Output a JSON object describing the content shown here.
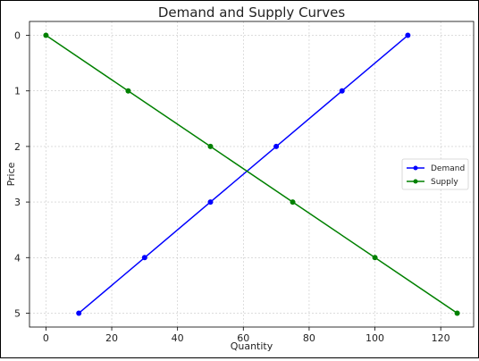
{
  "chart_data": {
    "type": "line",
    "title": "Demand and Supply Curves",
    "xlabel": "Quantity",
    "ylabel": "Price",
    "xlim": [
      -5,
      130
    ],
    "ylim": [
      5.25,
      -0.25
    ],
    "y_axis_inverted": true,
    "xticks": [
      0,
      20,
      40,
      60,
      80,
      100,
      120
    ],
    "yticks": [
      0,
      1,
      2,
      3,
      4,
      5
    ],
    "grid": true,
    "legend_position": "center-right",
    "series": [
      {
        "name": "Demand",
        "color": "#0000ff",
        "marker": "circle",
        "x": [
          10,
          30,
          50,
          70,
          90,
          110
        ],
        "y": [
          5,
          4,
          3,
          2,
          1,
          0
        ]
      },
      {
        "name": "Supply",
        "color": "#008000",
        "marker": "circle",
        "x": [
          0,
          25,
          50,
          75,
          100,
          125
        ],
        "y": [
          0,
          1,
          2,
          3,
          4,
          5
        ]
      }
    ]
  }
}
